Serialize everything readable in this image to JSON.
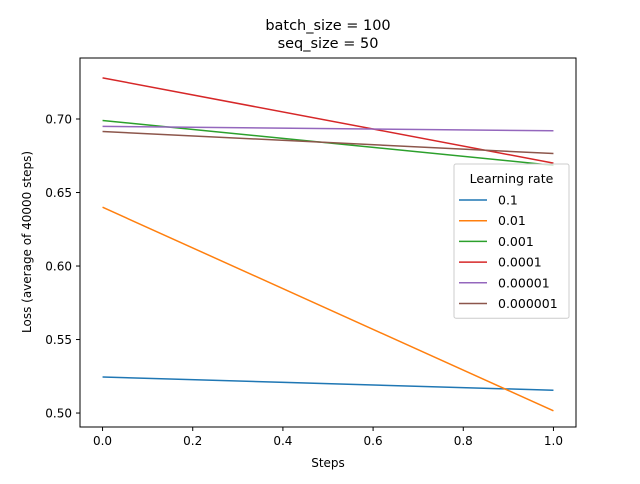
{
  "chart_data": {
    "type": "line",
    "title_lines": [
      "batch_size = 100",
      "seq_size = 50"
    ],
    "xlabel": "Steps",
    "ylabel": "Loss (average of 40000 steps)",
    "xlim": [
      -0.05,
      1.05
    ],
    "ylim": [
      0.4905,
      0.7415
    ],
    "x_ticks": [
      0.0,
      0.2,
      0.4,
      0.6,
      0.8,
      1.0
    ],
    "x_tick_labels": [
      "0.0",
      "0.2",
      "0.4",
      "0.6",
      "0.8",
      "1.0"
    ],
    "y_ticks": [
      0.5,
      0.55,
      0.6,
      0.65,
      0.7
    ],
    "y_tick_labels": [
      "0.50",
      "0.55",
      "0.60",
      "0.65",
      "0.70"
    ],
    "grid": false,
    "legend": {
      "title": "Learning rate",
      "placement": "center-right"
    },
    "x": [
      0.0,
      1.0
    ],
    "series": [
      {
        "name": "0.1",
        "color": "#1f77b4",
        "values": [
          0.5245,
          0.5155
        ]
      },
      {
        "name": "0.01",
        "color": "#ff7f0e",
        "values": [
          0.64,
          0.5015
        ]
      },
      {
        "name": "0.001",
        "color": "#2ca02c",
        "values": [
          0.699,
          0.6685
        ]
      },
      {
        "name": "0.0001",
        "color": "#d62728",
        "values": [
          0.728,
          0.67
        ]
      },
      {
        "name": "0.00001",
        "color": "#9467bd",
        "values": [
          0.695,
          0.692
        ]
      },
      {
        "name": "0.000001",
        "color": "#8c564b",
        "values": [
          0.6915,
          0.6765
        ]
      }
    ]
  }
}
